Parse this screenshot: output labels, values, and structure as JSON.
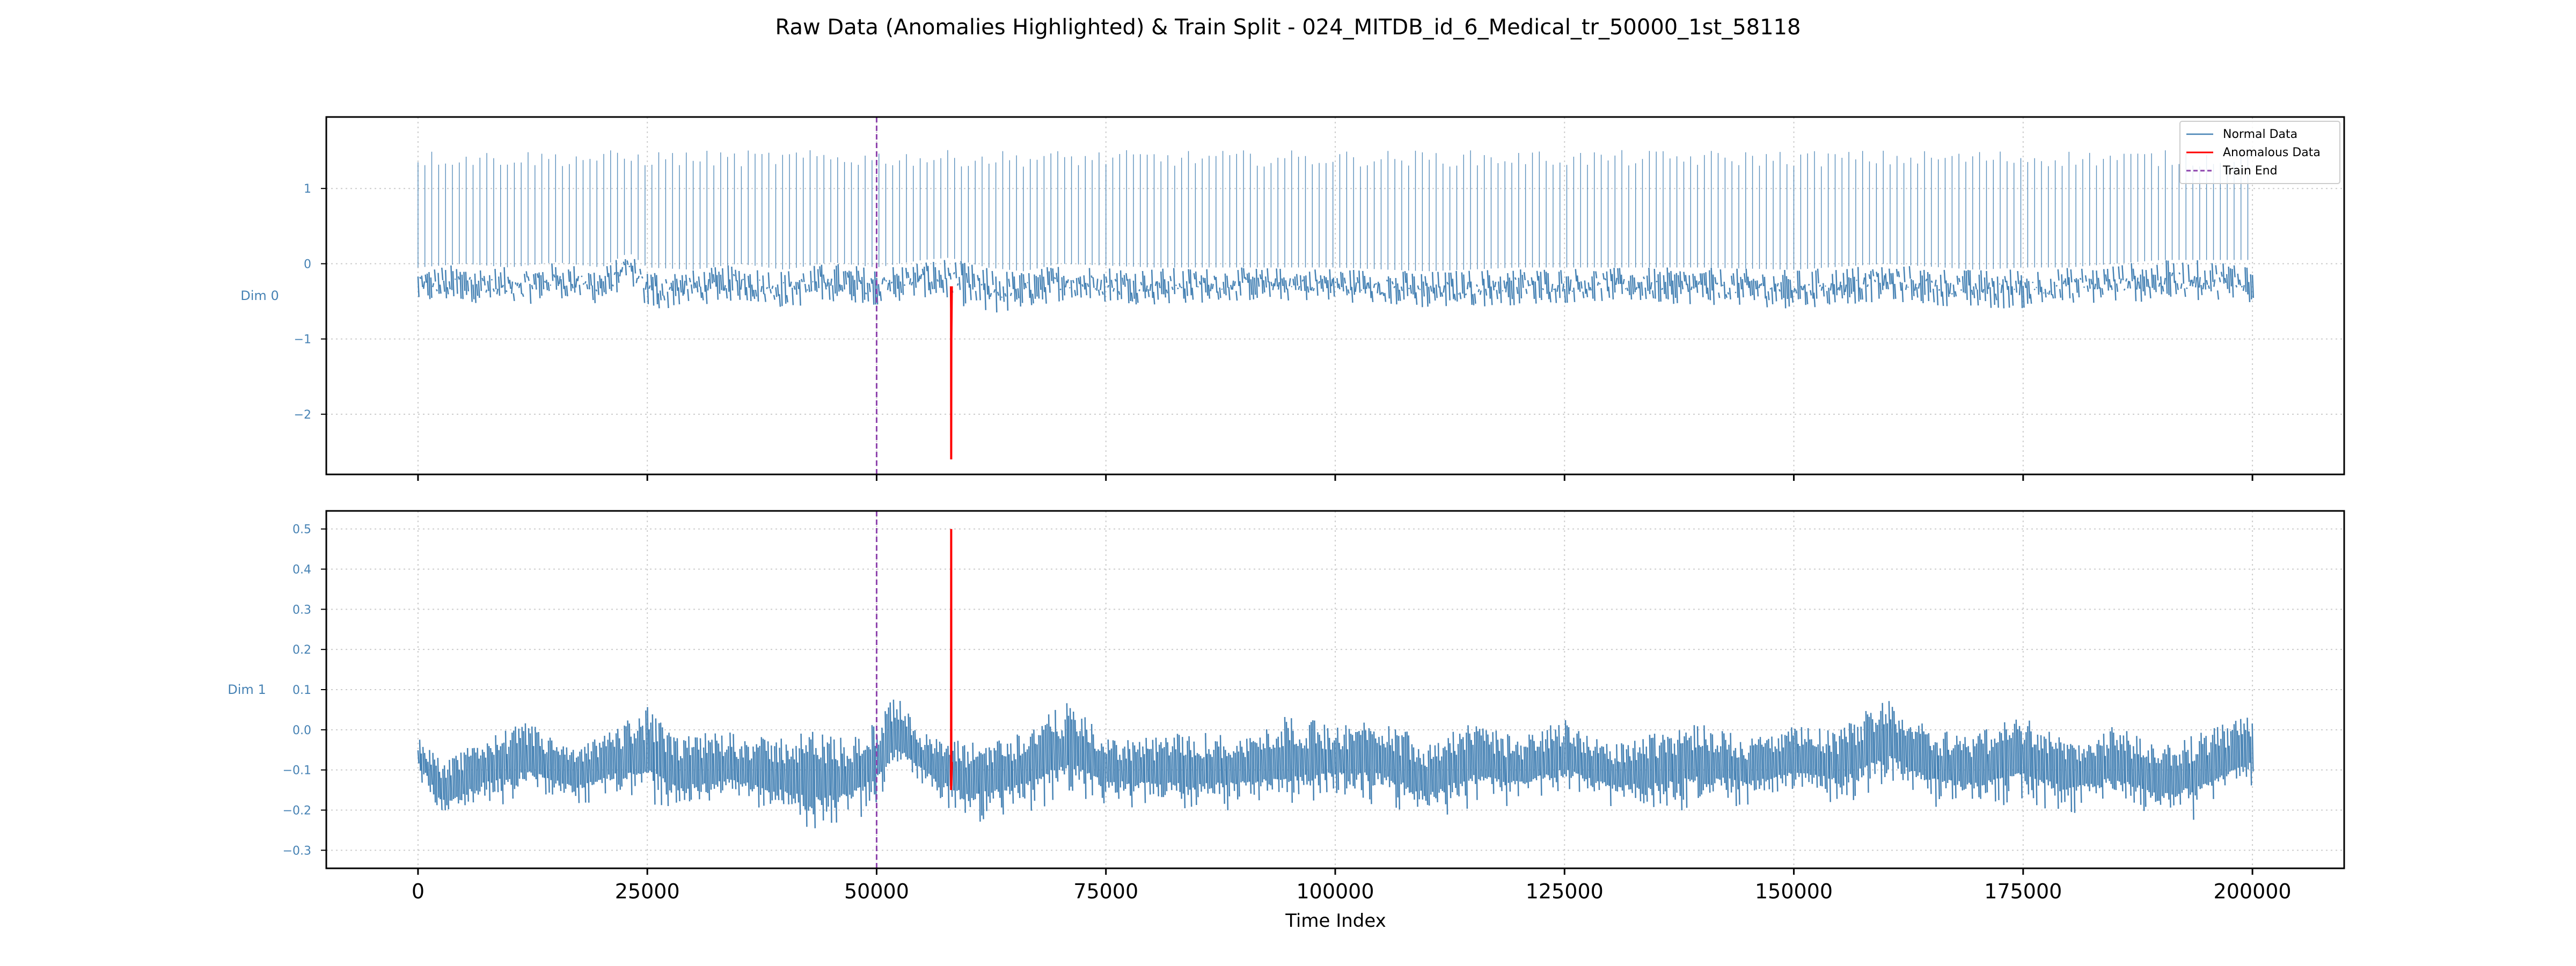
{
  "figure": {
    "title": "Raw Data (Anomalies Highlighted) & Train Split - 024_MITDB_id_6_Medical_tr_50000_1st_58118",
    "xlabel": "Time Index"
  },
  "colors": {
    "normal": "#4682b4",
    "anomaly": "#ff0000",
    "train_end": "#8e44ad",
    "grid": "#cccccc",
    "axis_label": "#4682b4"
  },
  "chart_data": [
    {
      "type": "line",
      "ylabel": "Dim 0",
      "xlim": [
        -10000,
        210000
      ],
      "ylim": [
        -2.8,
        1.95
      ],
      "xticks": [
        0,
        25000,
        50000,
        75000,
        100000,
        125000,
        150000,
        175000,
        200000
      ],
      "xtick_labels": [
        "0",
        "25000",
        "50000",
        "75000",
        "100000",
        "125000",
        "150000",
        "175000",
        "200000"
      ],
      "yticks": [
        1,
        0,
        -1,
        -2
      ],
      "ytick_labels": [
        "1",
        "0",
        "−1",
        "−2"
      ],
      "grid": true,
      "legend": {
        "position": "top-right",
        "entries": [
          "Normal Data",
          "Anomalous Data",
          "Train End"
        ]
      },
      "train_end_x": 50000,
      "series": [
        {
          "name": "Normal Data",
          "x_range": [
            0,
            200000
          ],
          "peak_level": 1.4,
          "baseline_envelope": {
            "x": [
              0,
              5000,
              10000,
              15000,
              20000,
              23000,
              25000,
              30000,
              35000,
              40000,
              45000,
              50000,
              55000,
              58000,
              62000,
              66000,
              70000,
              80000,
              90000,
              100000,
              110000,
              120000,
              130000,
              140000,
              150000,
              160000,
              170000,
              175000,
              180000,
              190000,
              200000
            ],
            "upper": [
              -0.05,
              0.0,
              -0.05,
              0.02,
              -0.05,
              0.15,
              -0.05,
              -0.08,
              0.0,
              -0.08,
              0.02,
              -0.05,
              0.05,
              0.08,
              -0.05,
              -0.1,
              0.0,
              -0.05,
              -0.05,
              -0.05,
              -0.1,
              -0.05,
              -0.05,
              -0.05,
              -0.08,
              0.0,
              -0.08,
              -0.05,
              -0.05,
              0.05,
              0.05
            ],
            "lower": [
              -0.55,
              -0.5,
              -0.6,
              -0.45,
              -0.55,
              -0.25,
              -0.65,
              -0.55,
              -0.5,
              -0.6,
              -0.5,
              -0.55,
              -0.45,
              -0.5,
              -0.7,
              -0.6,
              -0.5,
              -0.55,
              -0.5,
              -0.5,
              -0.6,
              -0.55,
              -0.5,
              -0.55,
              -0.6,
              -0.5,
              -0.6,
              -0.6,
              -0.55,
              -0.5,
              -0.55
            ]
          }
        },
        {
          "name": "Anomalous Data",
          "x": [
            58100,
            58118,
            58130,
            58150,
            58200
          ],
          "y": [
            -0.3,
            -0.6,
            -2.6,
            -1.0,
            -0.3
          ]
        }
      ]
    },
    {
      "type": "line",
      "ylabel": "Dim 1",
      "xlim": [
        -10000,
        210000
      ],
      "ylim": [
        -0.345,
        0.545
      ],
      "xticks": [
        0,
        25000,
        50000,
        75000,
        100000,
        125000,
        150000,
        175000,
        200000
      ],
      "xtick_labels": [
        "0",
        "25000",
        "50000",
        "75000",
        "100000",
        "125000",
        "150000",
        "175000",
        "200000"
      ],
      "yticks": [
        0.5,
        0.4,
        0.3,
        0.2,
        0.1,
        0.0,
        -0.1,
        -0.2,
        -0.3
      ],
      "ytick_labels": [
        "0.5",
        "0.4",
        "0.3",
        "0.2",
        "0.1",
        "0.0",
        "−0.1",
        "−0.2",
        "−0.3"
      ],
      "grid": true,
      "train_end_x": 50000,
      "series": [
        {
          "name": "Normal Data",
          "envelope": {
            "x": [
              0,
              3000,
              7000,
              12000,
              17000,
              21000,
              25000,
              28000,
              33000,
              38000,
              43000,
              47000,
              50000,
              52000,
              56000,
              60000,
              65000,
              71000,
              75000,
              80000,
              85000,
              90000,
              95000,
              100000,
              105000,
              110000,
              115000,
              120000,
              125000,
              130000,
              135000,
              140000,
              145000,
              150000,
              155000,
              160000,
              165000,
              170000,
              175000,
              180000,
              185000,
              190000,
              195000,
              200000
            ],
            "upper": [
              -0.02,
              -0.08,
              -0.02,
              0.02,
              -0.05,
              0.0,
              0.06,
              -0.02,
              0.0,
              -0.02,
              0.0,
              -0.02,
              0.02,
              0.09,
              -0.02,
              -0.03,
              -0.01,
              0.07,
              -0.02,
              -0.02,
              0.0,
              -0.02,
              0.04,
              0.01,
              0.03,
              -0.02,
              0.02,
              -0.02,
              0.03,
              -0.04,
              0.0,
              0.02,
              -0.02,
              0.01,
              0.0,
              0.09,
              0.0,
              0.0,
              0.04,
              -0.03,
              0.01,
              -0.04,
              0.0,
              0.04
            ],
            "lower": [
              -0.12,
              -0.25,
              -0.2,
              -0.18,
              -0.2,
              -0.18,
              -0.2,
              -0.22,
              -0.2,
              -0.22,
              -0.28,
              -0.25,
              -0.2,
              -0.12,
              -0.18,
              -0.25,
              -0.22,
              -0.18,
              -0.2,
              -0.2,
              -0.22,
              -0.2,
              -0.22,
              -0.18,
              -0.2,
              -0.25,
              -0.2,
              -0.2,
              -0.18,
              -0.2,
              -0.22,
              -0.2,
              -0.2,
              -0.18,
              -0.2,
              -0.16,
              -0.2,
              -0.22,
              -0.2,
              -0.22,
              -0.2,
              -0.24,
              -0.22,
              -0.15
            ]
          }
        },
        {
          "name": "Anomalous Data",
          "x": [
            58100,
            58118,
            58130,
            58150,
            58200
          ],
          "y": [
            -0.1,
            -0.15,
            0.5,
            -0.14,
            -0.08
          ]
        }
      ]
    }
  ]
}
